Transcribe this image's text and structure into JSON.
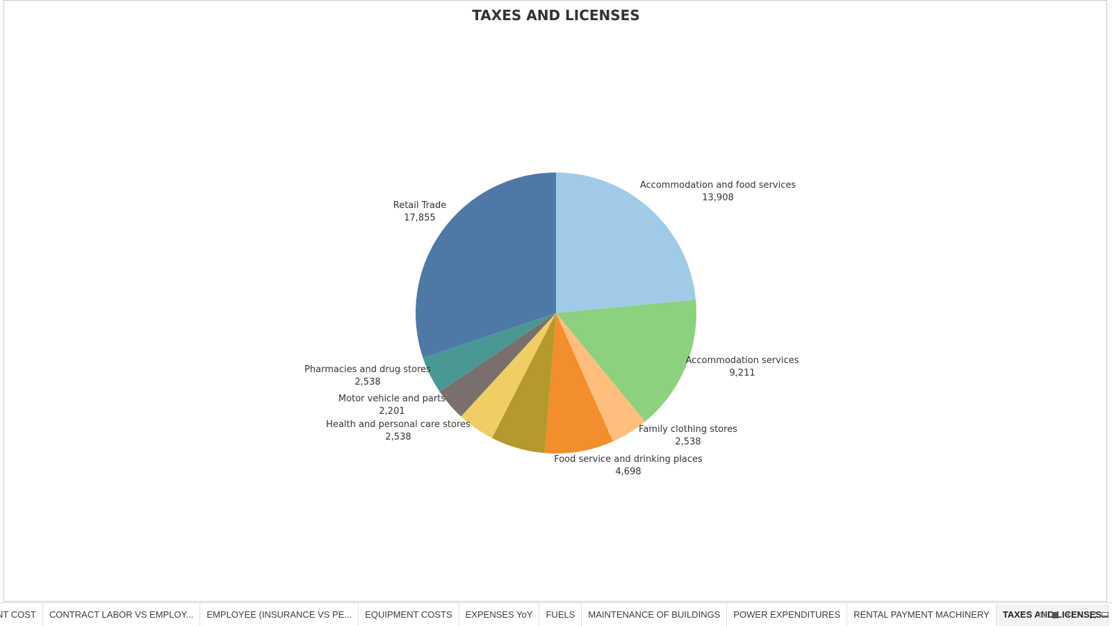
{
  "chart_data": {
    "type": "pie",
    "title": "TAXES AND LICENSES",
    "slices": [
      {
        "label": "Accommodation and food services",
        "value": 13908,
        "value_label": "13,908",
        "color": "#a0cbe8"
      },
      {
        "label": "Accommodation services",
        "value": 9211,
        "value_label": "9,211",
        "color": "#8cd17d"
      },
      {
        "label": "Family clothing stores",
        "value": 2538,
        "value_label": "2,538",
        "color": "#ffbe7d"
      },
      {
        "label": "Food service and drinking places",
        "value": 4698,
        "value_label": "4,698",
        "color": "#f28e2b"
      },
      {
        "label": "",
        "value": 3700,
        "value_label": "",
        "color": "#b6992d"
      },
      {
        "label": "Health and personal care stores",
        "value": 2538,
        "value_label": "2,538",
        "color": "#f1ce63"
      },
      {
        "label": "Motor vehicle and parts",
        "value": 2201,
        "value_label": "2,201",
        "color": "#79706e"
      },
      {
        "label": "Pharmacies and drug stores",
        "value": 2538,
        "value_label": "2,538",
        "color": "#499894"
      },
      {
        "label": "Retail Trade",
        "value": 17855,
        "value_label": "17,855",
        "color": "#4e79a7"
      }
    ],
    "legend": "none",
    "start_angle": "12 o'clock, clockwise"
  },
  "tabs": [
    {
      "label": "NT COST",
      "active": false
    },
    {
      "label": "CONTRACT LABOR VS EMPLOY...",
      "active": false
    },
    {
      "label": "EMPLOYEE (INSURANCE VS PE...",
      "active": false
    },
    {
      "label": "EQUIPMENT COSTS",
      "active": false
    },
    {
      "label": "EXPENSES YoY",
      "active": false
    },
    {
      "label": "FUELS",
      "active": false
    },
    {
      "label": "MAINTENANCE OF BUILDINGS",
      "active": false
    },
    {
      "label": "POWER EXPENDITURES",
      "active": false
    },
    {
      "label": "RENTAL PAYMENT MACHINERY",
      "active": false
    },
    {
      "label": "TAXES AND LICENSES",
      "active": true
    }
  ],
  "controls": {
    "icons": [
      "grid-view-icon",
      "single-view-icon",
      "prev-icon",
      "next-icon",
      "fullscreen-icon",
      "present-icon"
    ],
    "prev_glyph": "◂",
    "next_glyph": "▸"
  }
}
